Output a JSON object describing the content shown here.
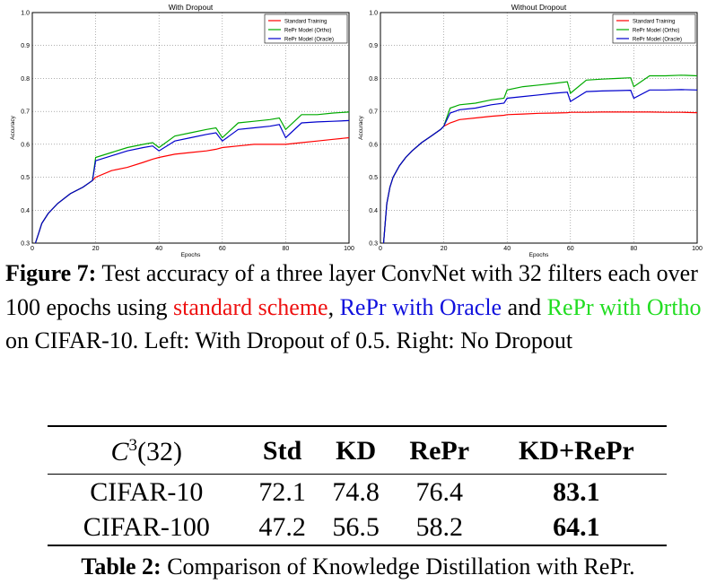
{
  "chart_data": [
    {
      "type": "line",
      "title": "With Dropout",
      "xlabel": "Epochs",
      "ylabel": "Accuracy",
      "xlim": [
        0,
        100
      ],
      "ylim": [
        0.3,
        1.0
      ],
      "xticks": [
        0,
        20,
        40,
        60,
        80,
        100
      ],
      "yticks": [
        0.3,
        0.4,
        0.5,
        0.6,
        0.7,
        0.8,
        0.9,
        1.0
      ],
      "grid": true,
      "legend_position": "top-right",
      "x": [
        1,
        2,
        3,
        5,
        8,
        12,
        16,
        19,
        20,
        25,
        30,
        35,
        38,
        40,
        45,
        50,
        55,
        58,
        60,
        65,
        70,
        75,
        78,
        80,
        85,
        90,
        95,
        100
      ],
      "series": [
        {
          "name": "Standard Training",
          "color": "#ff0000",
          "values": [
            0.3,
            0.33,
            0.36,
            0.39,
            0.42,
            0.45,
            0.47,
            0.49,
            0.5,
            0.52,
            0.53,
            0.545,
            0.555,
            0.56,
            0.57,
            0.575,
            0.58,
            0.585,
            0.59,
            0.595,
            0.6,
            0.6,
            0.6,
            0.6,
            0.605,
            0.61,
            0.615,
            0.62
          ]
        },
        {
          "name": "RePr Model (Ortho)",
          "color": "#00aa00",
          "values": [
            0.3,
            0.33,
            0.36,
            0.39,
            0.42,
            0.45,
            0.47,
            0.49,
            0.56,
            0.575,
            0.59,
            0.6,
            0.605,
            0.59,
            0.625,
            0.635,
            0.645,
            0.65,
            0.62,
            0.665,
            0.67,
            0.675,
            0.68,
            0.645,
            0.69,
            0.69,
            0.695,
            0.698
          ]
        },
        {
          "name": "RePr Model (Oracle)",
          "color": "#0000cc",
          "values": [
            0.3,
            0.33,
            0.36,
            0.39,
            0.42,
            0.45,
            0.47,
            0.49,
            0.55,
            0.565,
            0.58,
            0.59,
            0.595,
            0.58,
            0.61,
            0.62,
            0.63,
            0.635,
            0.61,
            0.645,
            0.65,
            0.655,
            0.66,
            0.62,
            0.665,
            0.668,
            0.67,
            0.672
          ]
        }
      ]
    },
    {
      "type": "line",
      "title": "Without Dropout",
      "xlabel": "Epochs",
      "ylabel": "Accuracy",
      "xlim": [
        0,
        100
      ],
      "ylim": [
        0.3,
        1.0
      ],
      "xticks": [
        0,
        20,
        40,
        60,
        80,
        100
      ],
      "yticks": [
        0.3,
        0.4,
        0.5,
        0.6,
        0.7,
        0.8,
        0.9,
        1.0
      ],
      "grid": true,
      "legend_position": "top-right",
      "x": [
        1,
        2,
        3,
        4,
        6,
        8,
        10,
        13,
        16,
        19,
        20,
        22,
        25,
        30,
        35,
        39,
        40,
        45,
        50,
        55,
        59,
        60,
        65,
        70,
        75,
        79,
        80,
        85,
        90,
        95,
        100
      ],
      "series": [
        {
          "name": "Standard Training",
          "color": "#ff0000",
          "values": [
            0.3,
            0.42,
            0.47,
            0.5,
            0.535,
            0.56,
            0.58,
            0.605,
            0.625,
            0.645,
            0.655,
            0.665,
            0.675,
            0.68,
            0.685,
            0.688,
            0.69,
            0.692,
            0.694,
            0.695,
            0.696,
            0.697,
            0.697,
            0.698,
            0.698,
            0.698,
            0.698,
            0.698,
            0.697,
            0.697,
            0.696
          ]
        },
        {
          "name": "RePr Model (Ortho)",
          "color": "#00aa00",
          "values": [
            0.3,
            0.42,
            0.47,
            0.5,
            0.535,
            0.56,
            0.58,
            0.605,
            0.625,
            0.645,
            0.655,
            0.71,
            0.72,
            0.725,
            0.735,
            0.74,
            0.765,
            0.775,
            0.78,
            0.785,
            0.79,
            0.755,
            0.795,
            0.798,
            0.8,
            0.802,
            0.775,
            0.808,
            0.808,
            0.81,
            0.808
          ]
        },
        {
          "name": "RePr Model (Oracle)",
          "color": "#0000cc",
          "values": [
            0.3,
            0.42,
            0.47,
            0.5,
            0.535,
            0.56,
            0.58,
            0.605,
            0.625,
            0.645,
            0.655,
            0.695,
            0.705,
            0.71,
            0.72,
            0.725,
            0.74,
            0.745,
            0.75,
            0.755,
            0.758,
            0.73,
            0.76,
            0.762,
            0.763,
            0.764,
            0.74,
            0.765,
            0.765,
            0.766,
            0.765
          ]
        }
      ]
    }
  ],
  "figure_caption": {
    "label": "Figure 7:",
    "text_1": " Test accuracy of a three layer ConvNet with 32 filters each over 100 epochs using ",
    "standard": "standard scheme",
    "text_2": ", ",
    "oracle": "RePr with Oracle",
    "text_3": " and ",
    "ortho": "RePr with Ortho",
    "text_4": " on CIFAR-10. Left: With Dropout of 0.5. Right: No Dropout"
  },
  "table": {
    "header": {
      "c3_base": "C",
      "c3_sup": "3",
      "c3_arg": "(32)",
      "cols": [
        "Std",
        "KD",
        "RePr",
        "KD+RePr"
      ]
    },
    "rows": [
      {
        "name": "CIFAR-10",
        "std": "72.1",
        "kd": "74.8",
        "repr": "76.4",
        "kdrepr": "83.1"
      },
      {
        "name": "CIFAR-100",
        "std": "47.2",
        "kd": "56.5",
        "repr": "58.2",
        "kdrepr": "64.1"
      }
    ],
    "caption_label": "Table 2:",
    "caption_text": " Comparison of Knowledge Distillation with RePr."
  }
}
